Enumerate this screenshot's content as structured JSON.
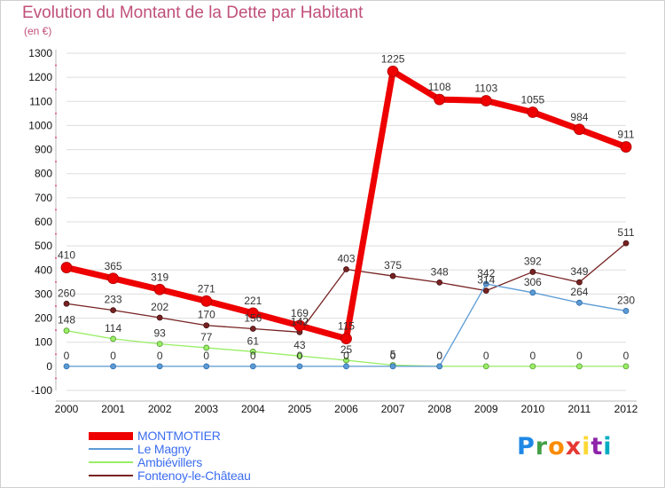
{
  "chart_data": {
    "type": "line",
    "title": "Evolution du Montant de la Dette par Habitant",
    "subtitle": "(en €)",
    "xlabel": "",
    "ylabel": "",
    "x": [
      "2000",
      "2001",
      "2002",
      "2003",
      "2004",
      "2005",
      "2006",
      "2007",
      "2008",
      "2009",
      "2010",
      "2011",
      "2012"
    ],
    "ylim": [
      -100,
      1300
    ],
    "yticks": [
      -100,
      0,
      100,
      200,
      300,
      400,
      500,
      600,
      700,
      800,
      900,
      1000,
      1100,
      1200,
      1300
    ],
    "grid": true,
    "legend_position": "bottom-left",
    "series": [
      {
        "name": "MONTMOTIER",
        "color": "#ee0000",
        "values": [
          410,
          365,
          319,
          271,
          221,
          169,
          115,
          1225,
          1108,
          1103,
          1055,
          984,
          911
        ]
      },
      {
        "name": "Le Magny",
        "color": "#5b9bd5",
        "values": [
          0,
          0,
          0,
          0,
          0,
          0,
          0,
          0,
          0,
          342,
          306,
          264,
          230
        ]
      },
      {
        "name": "Ambiévillers",
        "color": "#99ee66",
        "values": [
          148,
          114,
          93,
          77,
          61,
          43,
          25,
          5,
          0,
          0,
          0,
          0,
          0
        ]
      },
      {
        "name": "Fontenoy-le-Château",
        "color": "#772222",
        "values": [
          260,
          233,
          202,
          170,
          156,
          142,
          403,
          375,
          348,
          314,
          392,
          349,
          511
        ]
      }
    ]
  },
  "logo": {
    "text": "Proxiti",
    "colors": [
      "#1e88e5",
      "#43a047",
      "#fb8c00",
      "#e53935",
      "#fdd835",
      "#8e24aa",
      "#00acc1"
    ]
  }
}
